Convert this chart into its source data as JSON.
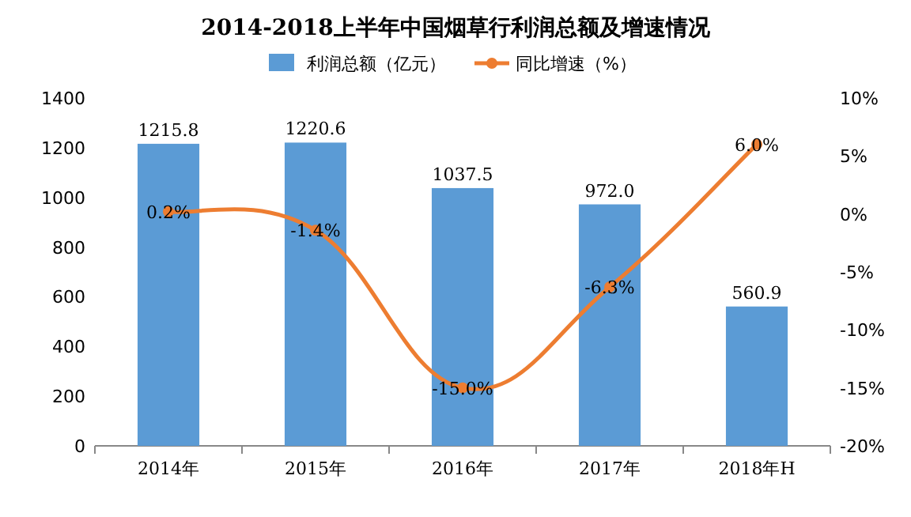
{
  "chart_data": {
    "type": "bar",
    "title": "2014-2018上半年中国烟草行利润总额及增速情况",
    "categories": [
      "2014年",
      "2015年",
      "2016年",
      "2017年",
      "2018年H"
    ],
    "series": [
      {
        "name": "利润总额（亿元）",
        "color": "#5b9bd5",
        "values": [
          1215.8,
          1220.6,
          1037.5,
          972.0,
          560.9
        ],
        "value_labels": [
          "1215.8",
          "1220.6",
          "1037.5",
          "972.0",
          "560.9"
        ]
      },
      {
        "name": "同比增速（%）",
        "type": "line",
        "axis": "y2",
        "color": "#ed7d31",
        "values": [
          0.2,
          -1.4,
          -15.0,
          -6.3,
          6.0
        ],
        "value_labels": [
          "0.2%",
          "-1.4%",
          "-15.0%",
          "-6.3%",
          "6.0%"
        ]
      }
    ],
    "marker": "circle",
    "ylim": [
      0,
      1400
    ],
    "yticks": [
      0,
      200,
      400,
      600,
      800,
      1000,
      1200,
      1400
    ],
    "y2lim": [
      -20,
      10
    ],
    "y2ticks": [
      {
        "value": -20,
        "label": "-20%"
      },
      {
        "value": -15,
        "label": "-15%"
      },
      {
        "value": -10,
        "label": "-10%"
      },
      {
        "value": -5,
        "label": "-5%"
      },
      {
        "value": 0,
        "label": "0%"
      },
      {
        "value": 5,
        "label": "5%"
      },
      {
        "value": 10,
        "label": "10%"
      }
    ],
    "legend": "top"
  }
}
